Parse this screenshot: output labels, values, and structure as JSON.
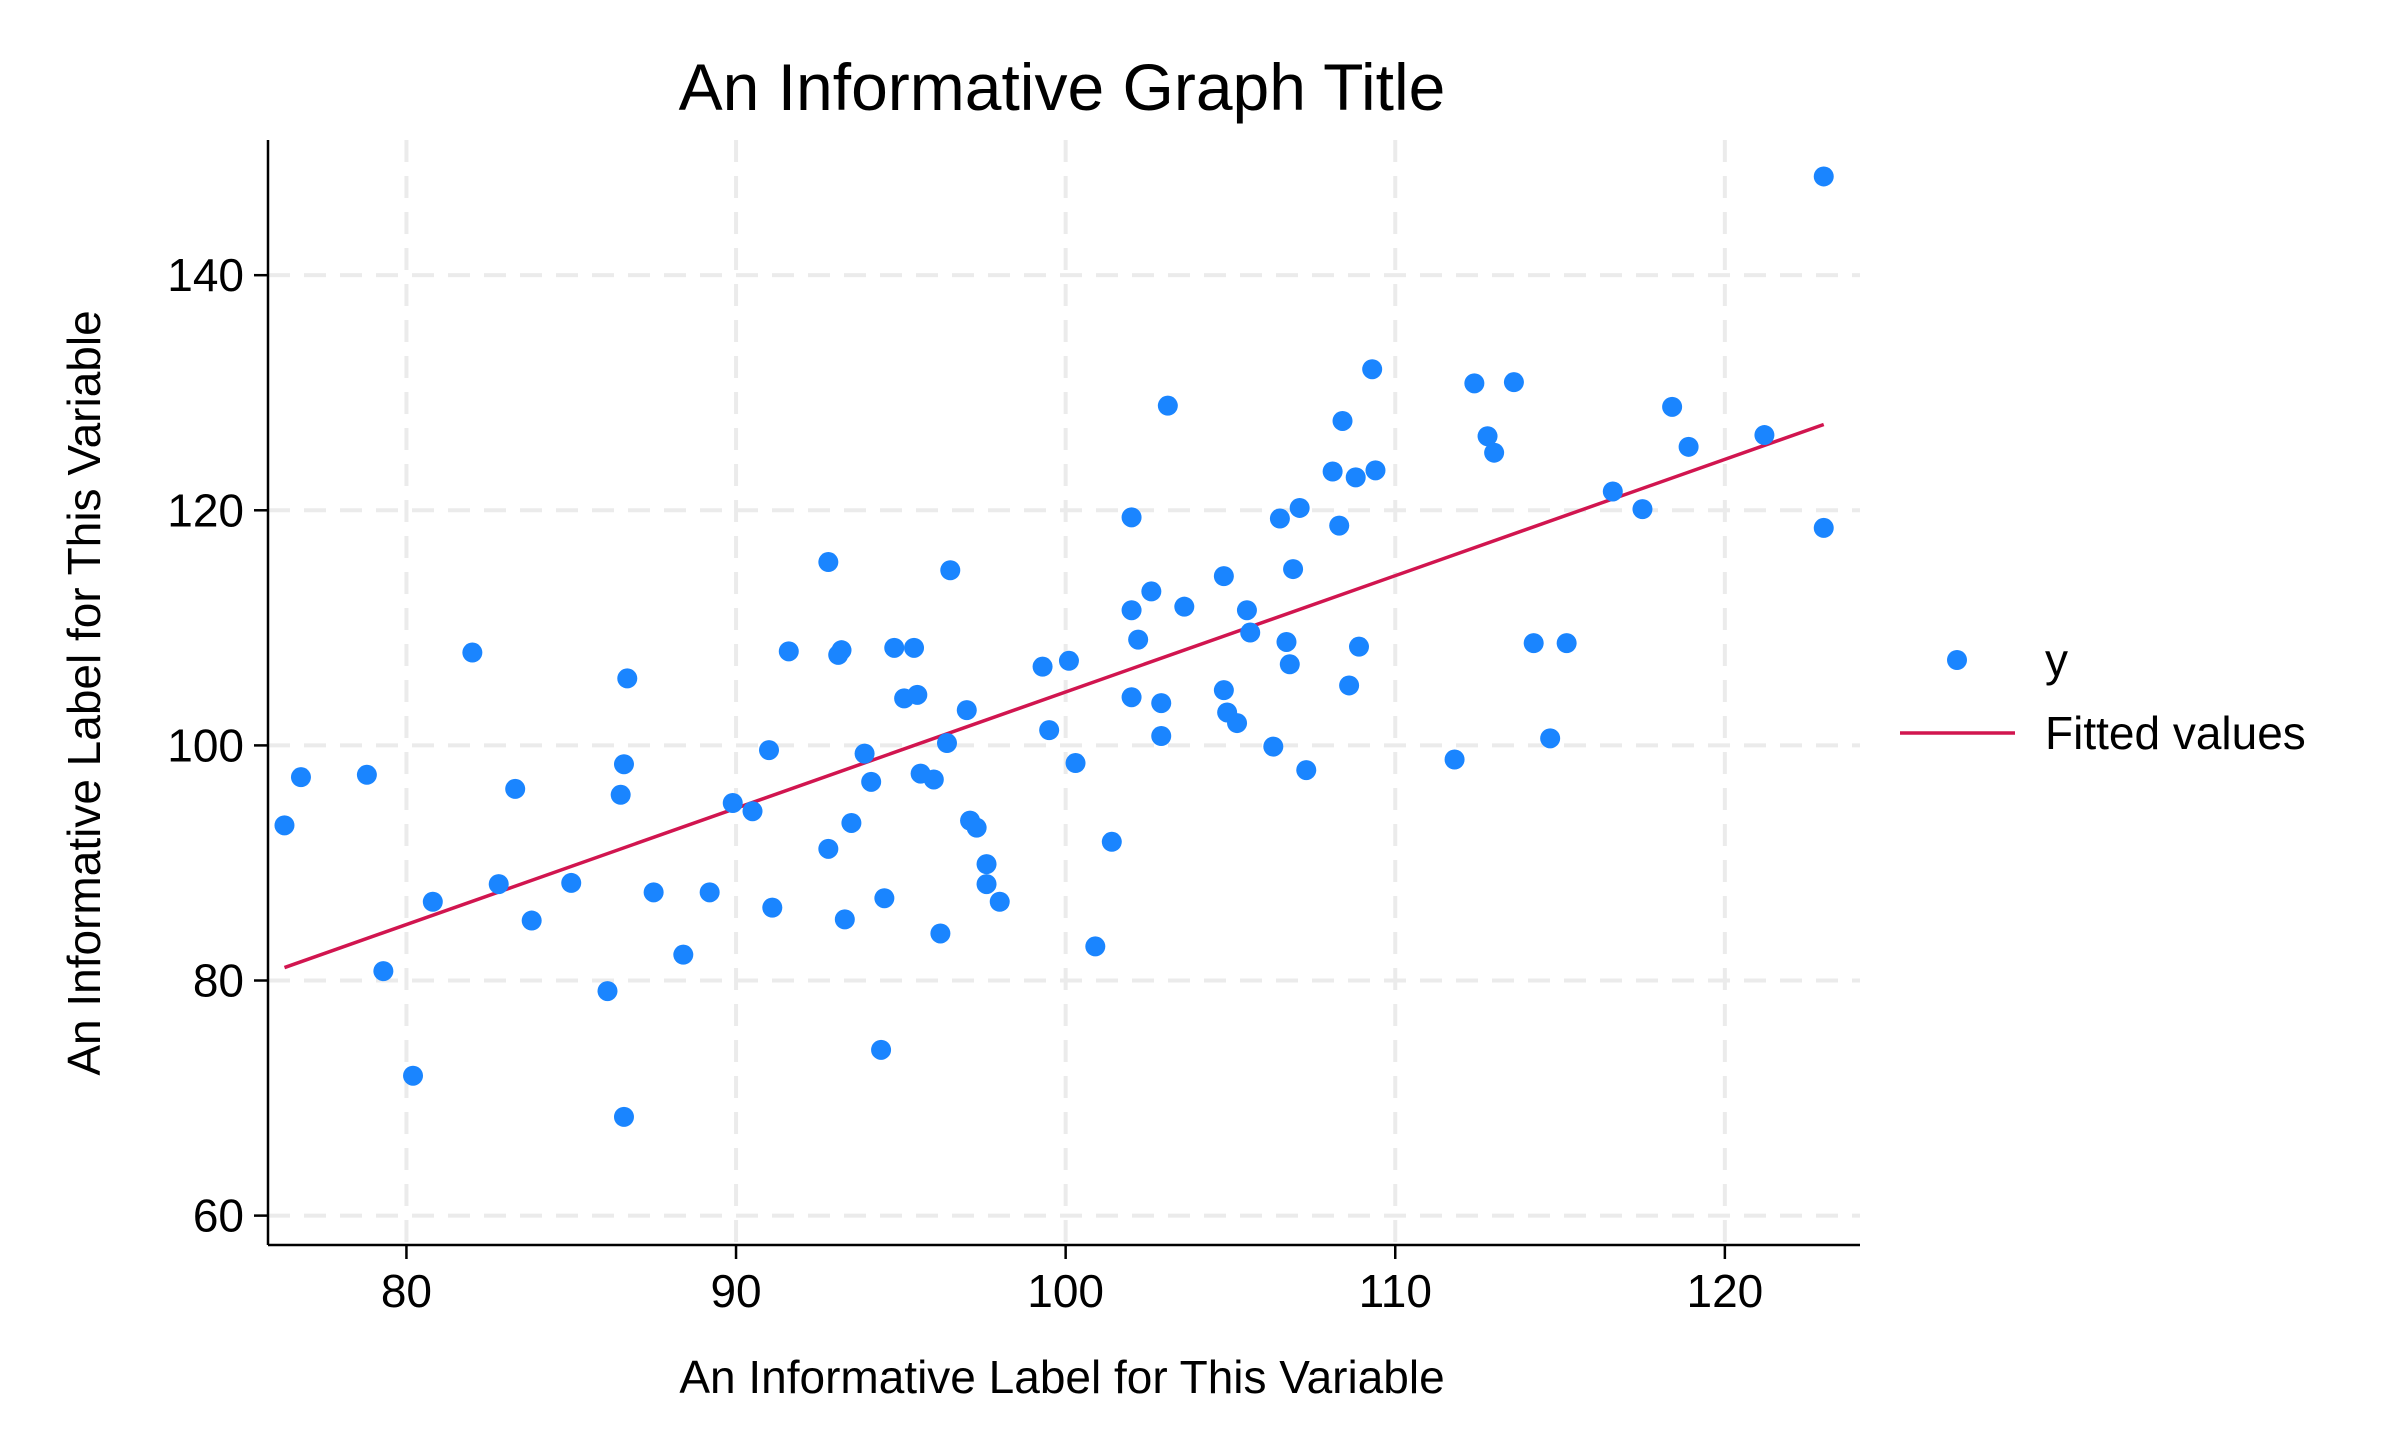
{
  "chart_data": {
    "type": "scatter",
    "title": "An Informative Graph Title",
    "xlabel": "An Informative Label for This Variable",
    "ylabel": "An Informative Label for This Variable",
    "xlim": [
      75.8,
      124.1
    ],
    "ylim": [
      57.5,
      151.5
    ],
    "x_ticks": [
      80,
      90,
      100,
      110,
      120
    ],
    "y_ticks": [
      60,
      80,
      100,
      120,
      140
    ],
    "grid": true,
    "legend_position": "right",
    "colors": {
      "points": "#1a85ff",
      "fit": "#d1154f"
    },
    "series": [
      {
        "name": "y",
        "kind": "points",
        "points": [
          [
            76.3,
            93.2
          ],
          [
            76.8,
            97.3
          ],
          [
            78.8,
            97.5
          ],
          [
            79.3,
            80.8
          ],
          [
            80.2,
            71.9
          ],
          [
            80.8,
            86.7
          ],
          [
            82.0,
            107.9
          ],
          [
            82.8,
            88.2
          ],
          [
            83.3,
            96.3
          ],
          [
            83.8,
            85.1
          ],
          [
            85.0,
            88.3
          ],
          [
            86.1,
            79.1
          ],
          [
            86.5,
            95.8
          ],
          [
            86.6,
            98.4
          ],
          [
            86.6,
            68.4
          ],
          [
            86.7,
            105.7
          ],
          [
            87.5,
            87.5
          ],
          [
            88.4,
            82.2
          ],
          [
            89.2,
            87.5
          ],
          [
            89.9,
            95.1
          ],
          [
            90.5,
            94.4
          ],
          [
            91.0,
            99.6
          ],
          [
            91.1,
            86.2
          ],
          [
            91.6,
            108.0
          ],
          [
            92.8,
            115.6
          ],
          [
            92.8,
            91.2
          ],
          [
            93.1,
            107.7
          ],
          [
            93.2,
            108.1
          ],
          [
            93.3,
            85.2
          ],
          [
            93.5,
            93.4
          ],
          [
            93.9,
            99.3
          ],
          [
            94.1,
            96.9
          ],
          [
            94.4,
            74.1
          ],
          [
            94.5,
            87.0
          ],
          [
            94.8,
            108.3
          ],
          [
            95.1,
            104.0
          ],
          [
            95.4,
            108.3
          ],
          [
            95.5,
            104.3
          ],
          [
            95.6,
            97.6
          ],
          [
            96.0,
            97.1
          ],
          [
            96.2,
            84.0
          ],
          [
            96.4,
            100.2
          ],
          [
            96.5,
            114.9
          ],
          [
            97.0,
            103.0
          ],
          [
            97.1,
            93.6
          ],
          [
            97.3,
            93.0
          ],
          [
            97.6,
            89.9
          ],
          [
            97.6,
            88.2
          ],
          [
            98.0,
            86.7
          ],
          [
            99.3,
            106.7
          ],
          [
            99.5,
            101.3
          ],
          [
            100.1,
            107.2
          ],
          [
            100.3,
            98.5
          ],
          [
            100.9,
            82.9
          ],
          [
            101.4,
            91.8
          ],
          [
            102.0,
            119.4
          ],
          [
            102.0,
            111.5
          ],
          [
            102.0,
            104.1
          ],
          [
            102.2,
            109.0
          ],
          [
            102.6,
            113.1
          ],
          [
            102.9,
            103.6
          ],
          [
            102.9,
            100.8
          ],
          [
            103.1,
            128.9
          ],
          [
            103.6,
            111.8
          ],
          [
            104.8,
            114.4
          ],
          [
            104.8,
            104.7
          ],
          [
            104.9,
            102.8
          ],
          [
            105.2,
            101.9
          ],
          [
            105.5,
            111.5
          ],
          [
            105.6,
            109.6
          ],
          [
            106.3,
            99.9
          ],
          [
            106.5,
            119.3
          ],
          [
            106.7,
            108.8
          ],
          [
            106.8,
            106.9
          ],
          [
            106.9,
            115.0
          ],
          [
            107.1,
            120.2
          ],
          [
            107.3,
            97.9
          ],
          [
            108.1,
            123.3
          ],
          [
            108.3,
            118.7
          ],
          [
            108.4,
            127.6
          ],
          [
            108.6,
            105.1
          ],
          [
            108.8,
            122.8
          ],
          [
            108.9,
            108.4
          ],
          [
            109.3,
            132.0
          ],
          [
            109.4,
            123.4
          ],
          [
            111.8,
            98.8
          ],
          [
            112.4,
            130.8
          ],
          [
            112.8,
            126.3
          ],
          [
            113.0,
            124.9
          ],
          [
            113.6,
            130.9
          ],
          [
            114.2,
            108.7
          ],
          [
            114.7,
            100.6
          ],
          [
            115.2,
            108.7
          ],
          [
            116.6,
            121.6
          ],
          [
            117.5,
            120.1
          ],
          [
            118.4,
            128.8
          ],
          [
            118.9,
            125.4
          ],
          [
            121.2,
            126.4
          ],
          [
            123.0,
            148.4
          ],
          [
            123.0,
            118.5
          ]
        ]
      },
      {
        "name": "Fitted values",
        "kind": "line",
        "line": [
          [
            76.3,
            81.1
          ],
          [
            123.0,
            127.3
          ]
        ]
      }
    ]
  }
}
